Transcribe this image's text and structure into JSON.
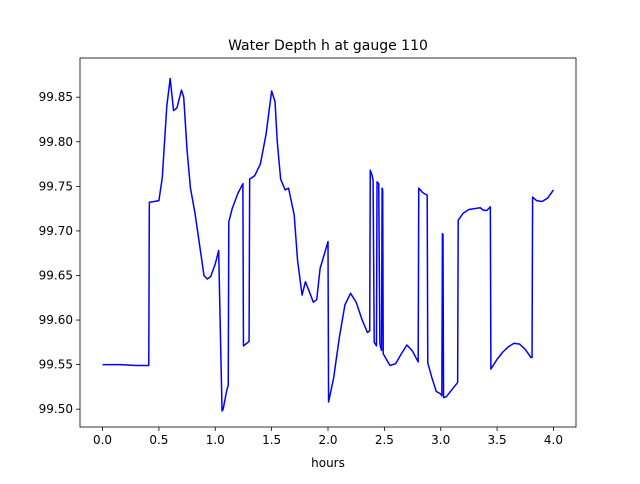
{
  "chart_data": {
    "type": "line",
    "title": "Water Depth h at gauge 110",
    "xlabel": "hours",
    "ylabel": "",
    "xlim": [
      -0.2,
      4.2
    ],
    "ylim": [
      99.48,
      99.894
    ],
    "xticks": [
      0.0,
      0.5,
      1.0,
      1.5,
      2.0,
      2.5,
      3.0,
      3.5,
      4.0
    ],
    "xtick_labels": [
      "0.0",
      "0.5",
      "1.0",
      "1.5",
      "2.0",
      "2.5",
      "3.0",
      "3.5",
      "4.0"
    ],
    "yticks": [
      99.5,
      99.55,
      99.6,
      99.65,
      99.7,
      99.75,
      99.8,
      99.85
    ],
    "ytick_labels": [
      "99.50",
      "99.55",
      "99.60",
      "99.65",
      "99.70",
      "99.75",
      "99.80",
      "99.85"
    ],
    "grid": false,
    "line_color": "#0000ff",
    "series": [
      {
        "x": [
          0.0,
          0.15,
          0.3,
          0.41,
          0.415,
          0.5,
          0.53,
          0.57,
          0.6,
          0.63,
          0.66,
          0.7,
          0.72,
          0.75,
          0.78,
          0.82,
          0.86,
          0.9,
          0.93,
          0.96,
          1.0,
          1.03,
          1.06,
          1.07,
          1.1,
          1.115,
          1.12,
          1.15,
          1.2,
          1.245,
          1.25,
          1.3,
          1.305,
          1.35,
          1.4,
          1.45,
          1.5,
          1.53,
          1.55,
          1.58,
          1.62,
          1.65,
          1.7,
          1.73,
          1.77,
          1.8,
          1.84,
          1.87,
          1.9,
          1.93,
          1.97,
          2.0,
          2.005,
          2.05,
          2.1,
          2.15,
          2.2,
          2.25,
          2.3,
          2.35,
          2.37,
          2.375,
          2.39,
          2.4,
          2.41,
          2.43,
          2.435,
          2.45,
          2.46,
          2.465,
          2.475,
          2.48,
          2.485,
          2.49,
          2.5,
          2.55,
          2.6,
          2.65,
          2.7,
          2.75,
          2.8,
          2.805,
          2.84,
          2.88,
          2.885,
          2.92,
          2.96,
          3.0,
          3.01,
          3.015,
          3.02,
          3.025,
          3.05,
          3.1,
          3.15,
          3.155,
          3.2,
          3.25,
          3.3,
          3.35,
          3.38,
          3.41,
          3.44,
          3.445,
          3.5,
          3.55,
          3.6,
          3.65,
          3.7,
          3.75,
          3.8,
          3.81,
          3.815,
          3.85,
          3.9,
          3.95,
          4.0
        ],
        "y": [
          99.55,
          99.55,
          99.549,
          99.549,
          99.732,
          99.734,
          99.76,
          99.84,
          99.871,
          99.835,
          99.838,
          99.858,
          99.85,
          99.79,
          99.748,
          99.72,
          99.685,
          99.65,
          99.646,
          99.649,
          99.663,
          99.678,
          99.498,
          99.5,
          99.52,
          99.527,
          99.71,
          99.725,
          99.742,
          99.753,
          99.571,
          99.576,
          99.758,
          99.762,
          99.775,
          99.808,
          99.857,
          99.845,
          99.8,
          99.758,
          99.746,
          99.748,
          99.718,
          99.667,
          99.628,
          99.643,
          99.63,
          99.62,
          99.623,
          99.658,
          99.675,
          99.688,
          99.508,
          99.535,
          99.58,
          99.617,
          99.63,
          99.62,
          99.601,
          99.586,
          99.588,
          99.768,
          99.763,
          99.757,
          99.575,
          99.571,
          99.755,
          99.753,
          99.575,
          99.57,
          99.566,
          99.748,
          99.746,
          99.562,
          99.56,
          99.549,
          99.551,
          99.562,
          99.572,
          99.565,
          99.553,
          99.748,
          99.743,
          99.74,
          99.552,
          99.536,
          99.52,
          99.517,
          99.515,
          99.697,
          99.696,
          99.513,
          99.514,
          99.522,
          99.53,
          99.712,
          99.72,
          99.724,
          99.725,
          99.726,
          99.723,
          99.723,
          99.727,
          99.545,
          99.556,
          99.564,
          99.57,
          99.574,
          99.573,
          99.567,
          99.558,
          99.558,
          99.738,
          99.734,
          99.733,
          99.737,
          99.746
        ]
      }
    ]
  }
}
